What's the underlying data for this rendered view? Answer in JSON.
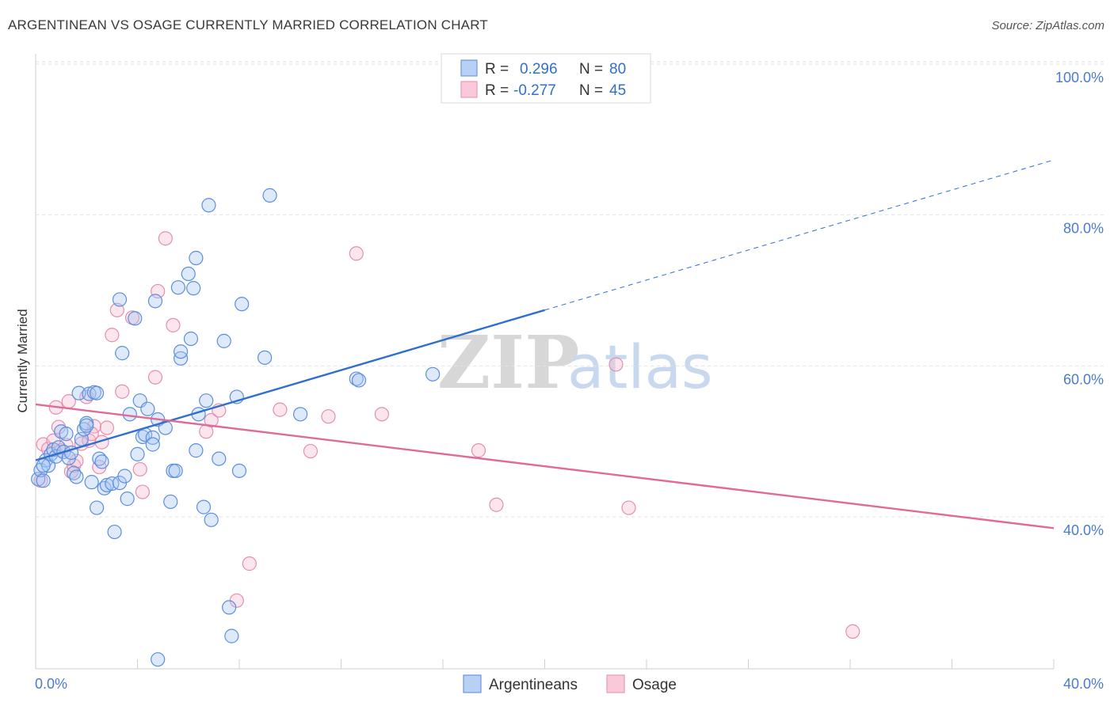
{
  "title": "ARGENTINEAN VS OSAGE CURRENTLY MARRIED CORRELATION CHART",
  "source": "Source: ZipAtlas.com",
  "colors": {
    "blue": "#5b8fde",
    "blue_line": "#2f6fcf",
    "pink": "#e889aa",
    "pink_line": "#e06a98",
    "tick_text": "#4a7bd0"
  },
  "legend": {
    "rows": [
      {
        "r_label": "R =",
        "r_value": "0.296",
        "n_label": "N =",
        "n_value": "80"
      },
      {
        "r_label": "R =",
        "r_value": "-0.277",
        "n_label": "N =",
        "n_value": "45"
      }
    ]
  },
  "watermark": {
    "zip": "ZIP",
    "atlas": "atlas"
  },
  "chart_data": {
    "type": "scatter",
    "ylabel": "Currently Married",
    "xlim": [
      0,
      40
    ],
    "ylim": [
      20,
      102
    ],
    "x_tick_labels": [
      "0.0%",
      "40.0%"
    ],
    "y_ticks": [
      {
        "value": 40,
        "label": "40.0%"
      },
      {
        "value": 60,
        "label": "60.0%"
      },
      {
        "value": 80,
        "label": "80.0%"
      },
      {
        "value": 100,
        "label": "100.0%"
      }
    ],
    "grid": "horizontal dashed",
    "series": [
      {
        "name": "Argentineans",
        "color": "#5b8fde",
        "trend": {
          "x0": 0,
          "y0": 47.5,
          "x1": 20,
          "y1": 67.4,
          "dashed_to_x": 40,
          "dashed_to_y": 87.3
        },
        "points": [
          [
            0.1,
            45.0
          ],
          [
            0.2,
            46.2
          ],
          [
            0.3,
            44.8
          ],
          [
            0.4,
            47.5
          ],
          [
            0.5,
            46.8
          ],
          [
            0.6,
            48.3
          ],
          [
            0.7,
            48.9
          ],
          [
            0.8,
            48.0
          ],
          [
            0.9,
            49.2
          ],
          [
            1.0,
            51.3
          ],
          [
            1.1,
            48.6
          ],
          [
            1.2,
            51.0
          ],
          [
            1.3,
            47.8
          ],
          [
            1.4,
            48.5
          ],
          [
            1.5,
            45.8
          ],
          [
            1.6,
            45.3
          ],
          [
            1.7,
            56.4
          ],
          [
            1.8,
            50.3
          ],
          [
            1.9,
            51.6
          ],
          [
            2.0,
            52.4
          ],
          [
            2.1,
            56.3
          ],
          [
            2.2,
            44.6
          ],
          [
            2.3,
            56.5
          ],
          [
            2.4,
            41.2
          ],
          [
            2.5,
            47.7
          ],
          [
            2.6,
            47.3
          ],
          [
            2.7,
            43.8
          ],
          [
            2.8,
            44.2
          ],
          [
            3.0,
            44.4
          ],
          [
            3.1,
            38.0
          ],
          [
            3.3,
            44.5
          ],
          [
            3.3,
            68.8
          ],
          [
            3.4,
            61.7
          ],
          [
            3.5,
            45.4
          ],
          [
            3.6,
            42.4
          ],
          [
            3.7,
            53.6
          ],
          [
            3.9,
            66.3
          ],
          [
            4.0,
            48.3
          ],
          [
            4.1,
            55.4
          ],
          [
            4.2,
            50.6
          ],
          [
            4.3,
            50.9
          ],
          [
            4.4,
            54.3
          ],
          [
            4.6,
            50.5
          ],
          [
            4.6,
            49.6
          ],
          [
            4.7,
            68.6
          ],
          [
            4.8,
            52.9
          ],
          [
            4.8,
            21.1
          ],
          [
            5.1,
            51.8
          ],
          [
            5.3,
            42.0
          ],
          [
            5.4,
            46.1
          ],
          [
            5.5,
            46.1
          ],
          [
            5.6,
            70.4
          ],
          [
            5.7,
            61.0
          ],
          [
            5.7,
            61.9
          ],
          [
            6.0,
            72.2
          ],
          [
            6.1,
            63.6
          ],
          [
            6.2,
            70.3
          ],
          [
            6.3,
            74.3
          ],
          [
            6.3,
            48.8
          ],
          [
            6.4,
            53.6
          ],
          [
            6.6,
            41.3
          ],
          [
            6.8,
            81.3
          ],
          [
            6.9,
            39.6
          ],
          [
            7.2,
            47.7
          ],
          [
            7.4,
            63.3
          ],
          [
            7.6,
            28.0
          ],
          [
            7.7,
            24.2
          ],
          [
            7.9,
            55.9
          ],
          [
            8.0,
            46.1
          ],
          [
            8.1,
            68.2
          ],
          [
            9.0,
            61.1
          ],
          [
            9.2,
            82.6
          ],
          [
            10.4,
            53.6
          ],
          [
            12.6,
            58.3
          ],
          [
            12.7,
            58.1
          ],
          [
            15.6,
            58.9
          ],
          [
            0.3,
            46.8
          ],
          [
            2.4,
            56.4
          ],
          [
            6.7,
            55.4
          ],
          [
            2.0,
            52.1
          ]
        ]
      },
      {
        "name": "Osage",
        "color": "#e889aa",
        "trend": {
          "x0": 0,
          "y0": 54.9,
          "x1": 40,
          "y1": 38.5
        },
        "points": [
          [
            0.2,
            44.8
          ],
          [
            0.3,
            49.6
          ],
          [
            0.5,
            49.0
          ],
          [
            0.7,
            50.1
          ],
          [
            0.8,
            54.5
          ],
          [
            0.9,
            51.9
          ],
          [
            1.0,
            48.8
          ],
          [
            1.2,
            49.5
          ],
          [
            1.3,
            55.3
          ],
          [
            1.4,
            46.0
          ],
          [
            1.5,
            46.8
          ],
          [
            1.6,
            47.4
          ],
          [
            1.8,
            49.7
          ],
          [
            2.0,
            55.9
          ],
          [
            2.1,
            50.1
          ],
          [
            2.3,
            52.0
          ],
          [
            2.5,
            46.6
          ],
          [
            2.6,
            49.9
          ],
          [
            2.8,
            51.8
          ],
          [
            3.0,
            64.1
          ],
          [
            3.2,
            67.4
          ],
          [
            3.4,
            56.6
          ],
          [
            3.8,
            66.4
          ],
          [
            4.1,
            46.3
          ],
          [
            4.2,
            43.3
          ],
          [
            4.7,
            58.5
          ],
          [
            4.8,
            69.9
          ],
          [
            5.1,
            76.9
          ],
          [
            5.4,
            65.4
          ],
          [
            6.7,
            51.3
          ],
          [
            6.9,
            52.8
          ],
          [
            7.2,
            54.1
          ],
          [
            7.9,
            28.9
          ],
          [
            8.4,
            33.8
          ],
          [
            9.6,
            54.2
          ],
          [
            10.8,
            48.7
          ],
          [
            11.5,
            53.3
          ],
          [
            12.6,
            74.9
          ],
          [
            13.6,
            53.6
          ],
          [
            17.4,
            48.8
          ],
          [
            18.1,
            41.6
          ],
          [
            22.8,
            60.2
          ],
          [
            23.3,
            41.2
          ],
          [
            32.1,
            24.8
          ],
          [
            2.2,
            51.0
          ]
        ]
      }
    ]
  },
  "bottom_legend": [
    {
      "label": "Argentineans"
    },
    {
      "label": "Osage"
    }
  ]
}
